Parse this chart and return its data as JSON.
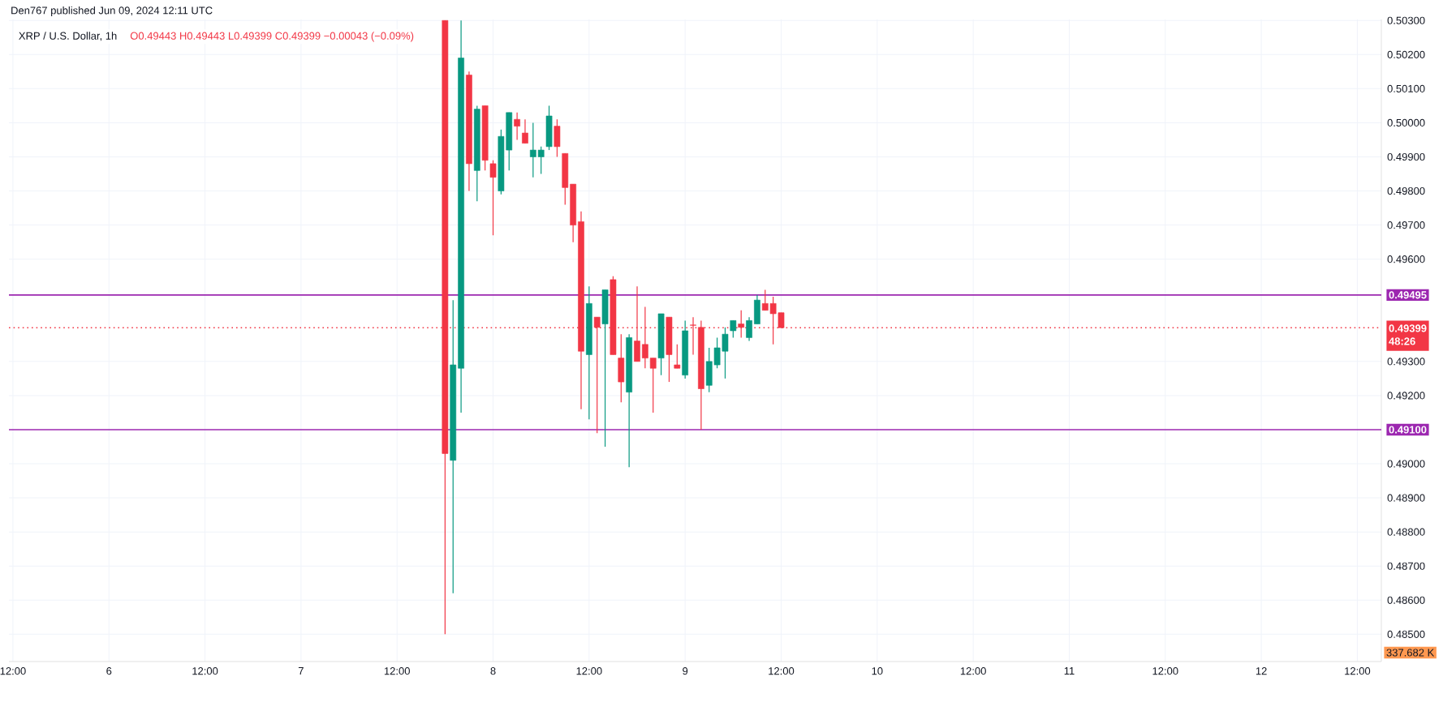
{
  "chart_data": {
    "type": "candlestick",
    "title": "XRP / U.S. Dollar, 1h",
    "subtitle": "O0.49443 H0.49443 L0.49399 C0.49399 −0.00043 (−0.09%)",
    "annotations": [
      "Den767 published Jun 09, 2024 12:11 UTC",
      "48:26",
      "337.682 K"
    ],
    "x": [
      "2024-06-07T18:00",
      "2024-06-07T19:00",
      "2024-06-07T20:00",
      "2024-06-07T21:00",
      "2024-06-07T22:00",
      "2024-06-07T23:00",
      "2024-06-08T00:00",
      "2024-06-08T01:00",
      "2024-06-08T02:00",
      "2024-06-08T03:00",
      "2024-06-08T04:00",
      "2024-06-08T05:00",
      "2024-06-08T06:00",
      "2024-06-08T07:00",
      "2024-06-08T08:00",
      "2024-06-08T09:00",
      "2024-06-08T10:00",
      "2024-06-08T11:00",
      "2024-06-08T12:00",
      "2024-06-08T13:00",
      "2024-06-08T14:00",
      "2024-06-08T15:00",
      "2024-06-08T16:00",
      "2024-06-08T17:00",
      "2024-06-08T18:00",
      "2024-06-08T19:00",
      "2024-06-08T20:00",
      "2024-06-08T21:00",
      "2024-06-08T22:00",
      "2024-06-08T23:00",
      "2024-06-09T00:00",
      "2024-06-09T01:00",
      "2024-06-09T02:00",
      "2024-06-09T03:00",
      "2024-06-09T04:00",
      "2024-06-09T05:00",
      "2024-06-09T06:00",
      "2024-06-09T07:00",
      "2024-06-09T08:00",
      "2024-06-09T09:00",
      "2024-06-09T10:00",
      "2024-06-09T11:00",
      "2024-06-09T12:00"
    ],
    "ohlc": [
      [
        0.503,
        0.503,
        0.485,
        0.4903
      ],
      [
        0.4901,
        0.4948,
        0.4862,
        0.4929
      ],
      [
        0.4928,
        0.503,
        0.4915,
        0.5019
      ],
      [
        0.5014,
        0.5015,
        0.498,
        0.4988
      ],
      [
        0.4986,
        0.5005,
        0.4977,
        0.5004
      ],
      [
        0.5005,
        0.5005,
        0.4986,
        0.4989
      ],
      [
        0.4988,
        0.4989,
        0.4967,
        0.4984
      ],
      [
        0.498,
        0.4998,
        0.4979,
        0.4996
      ],
      [
        0.4992,
        0.5003,
        0.4986,
        0.5003
      ],
      [
        0.5001,
        0.5003,
        0.4995,
        0.4999
      ],
      [
        0.4997,
        0.5001,
        0.4994,
        0.4994
      ],
      [
        0.499,
        0.5,
        0.4984,
        0.4992
      ],
      [
        0.499,
        0.4993,
        0.4985,
        0.4992
      ],
      [
        0.4993,
        0.5005,
        0.4992,
        0.5002
      ],
      [
        0.4999,
        0.5001,
        0.499,
        0.4993
      ],
      [
        0.4991,
        0.4991,
        0.4976,
        0.4981
      ],
      [
        0.4982,
        0.4982,
        0.4965,
        0.497
      ],
      [
        0.4971,
        0.4974,
        0.4916,
        0.4933
      ],
      [
        0.4932,
        0.4952,
        0.4913,
        0.4947
      ],
      [
        0.4943,
        0.4943,
        0.4909,
        0.494
      ],
      [
        0.4941,
        0.4951,
        0.4905,
        0.4951
      ],
      [
        0.4954,
        0.4955,
        0.4932,
        0.4932
      ],
      [
        0.4931,
        0.4938,
        0.4918,
        0.4924
      ],
      [
        0.4921,
        0.4938,
        0.4899,
        0.4937
      ],
      [
        0.4936,
        0.4952,
        0.493,
        0.493
      ],
      [
        0.4935,
        0.4946,
        0.4928,
        0.4931
      ],
      [
        0.4931,
        0.4931,
        0.4915,
        0.4928
      ],
      [
        0.4931,
        0.4944,
        0.4926,
        0.4944
      ],
      [
        0.4943,
        0.4943,
        0.4924,
        0.4932
      ],
      [
        0.4929,
        0.4935,
        0.4928,
        0.4928
      ],
      [
        0.4926,
        0.4942,
        0.4925,
        0.4939
      ],
      [
        0.49407,
        0.4943,
        0.4932,
        0.49406
      ],
      [
        0.494,
        0.4942,
        0.491,
        0.4922
      ],
      [
        0.4923,
        0.4934,
        0.4921,
        0.493
      ],
      [
        0.4929,
        0.4937,
        0.4928,
        0.4934
      ],
      [
        0.4933,
        0.494,
        0.4925,
        0.4938
      ],
      [
        0.4939,
        0.4942,
        0.4937,
        0.4942
      ],
      [
        0.4941,
        0.4945,
        0.4937,
        0.494
      ],
      [
        0.4937,
        0.4943,
        0.4936,
        0.4942
      ],
      [
        0.4941,
        0.49495,
        0.4941,
        0.4948
      ],
      [
        0.4947,
        0.4951,
        0.4945,
        0.4945
      ],
      [
        0.4947,
        0.4949,
        0.4935,
        0.4944
      ],
      [
        0.49443,
        0.49443,
        0.49399,
        0.49399
      ]
    ],
    "colors": [
      "#f23645",
      "#089981",
      "#089981",
      "#f23645",
      "#089981",
      "#f23645",
      "#f23645",
      "#089981",
      "#089981",
      "#f23645",
      "#f23645",
      "#089981",
      "#089981",
      "#089981",
      "#f23645",
      "#f23645",
      "#f23645",
      "#f23645",
      "#089981",
      "#f23645",
      "#089981",
      "#f23645",
      "#f23645",
      "#089981",
      "#f23645",
      "#f23645",
      "#f23645",
      "#089981",
      "#f23645",
      "#f23645",
      "#089981",
      "#f23645",
      "#f23645",
      "#089981",
      "#089981",
      "#089981",
      "#089981",
      "#f23645",
      "#089981",
      "#089981",
      "#f23645",
      "#f23645",
      "#f23645"
    ],
    "xlim": [
      "2024-06-05T11:30",
      "2024-06-12T15:00"
    ],
    "xticks": [
      {
        "value": "2024-06-05T12:00",
        "label": "12:00"
      },
      {
        "value": "2024-06-06T00:00",
        "label": "6"
      },
      {
        "value": "2024-06-06T12:00",
        "label": "12:00"
      },
      {
        "value": "2024-06-07T00:00",
        "label": "7"
      },
      {
        "value": "2024-06-07T12:00",
        "label": "12:00"
      },
      {
        "value": "2024-06-08T00:00",
        "label": "8"
      },
      {
        "value": "2024-06-08T12:00",
        "label": "12:00"
      },
      {
        "value": "2024-06-09T00:00",
        "label": "9"
      },
      {
        "value": "2024-06-09T12:00",
        "label": "12:00"
      },
      {
        "value": "2024-06-10T00:00",
        "label": "10"
      },
      {
        "value": "2024-06-10T12:00",
        "label": "12:00"
      },
      {
        "value": "2024-06-11T00:00",
        "label": "11"
      },
      {
        "value": "2024-06-11T12:00",
        "label": "12:00"
      },
      {
        "value": "2024-06-12T00:00",
        "label": "12"
      },
      {
        "value": "2024-06-12T12:00",
        "label": "12:00"
      }
    ],
    "ylim": [
      0.4842,
      0.50303
    ],
    "yticks": [
      {
        "value": 0.485,
        "label": "0.48500"
      },
      {
        "value": 0.486,
        "label": "0.48600"
      },
      {
        "value": 0.487,
        "label": "0.48700"
      },
      {
        "value": 0.488,
        "label": "0.48800"
      },
      {
        "value": 0.489,
        "label": "0.48900"
      },
      {
        "value": 0.49,
        "label": "0.49000"
      },
      {
        "value": 0.492,
        "label": "0.49200"
      },
      {
        "value": 0.493,
        "label": "0.49300"
      },
      {
        "value": 0.496,
        "label": "0.49600"
      },
      {
        "value": 0.497,
        "label": "0.49700"
      },
      {
        "value": 0.498,
        "label": "0.49800"
      },
      {
        "value": 0.499,
        "label": "0.49900"
      },
      {
        "value": 0.5,
        "label": "0.50000"
      },
      {
        "value": 0.501,
        "label": "0.50100"
      },
      {
        "value": 0.502,
        "label": "0.50200"
      },
      {
        "value": 0.503,
        "label": "0.50300"
      }
    ],
    "ref_lines": [
      {
        "axis": "y",
        "value": 0.49495,
        "label": "0.49495",
        "color": "#9c27b0",
        "line_style": "solid"
      },
      {
        "axis": "y",
        "value": 0.49399,
        "label": "0.49399",
        "color": "#f23645",
        "line_style": "dotted"
      },
      {
        "axis": "y",
        "value": 0.491,
        "label": "0.49100",
        "color": "#9c27b0",
        "line_style": "solid"
      }
    ],
    "grid": true
  }
}
